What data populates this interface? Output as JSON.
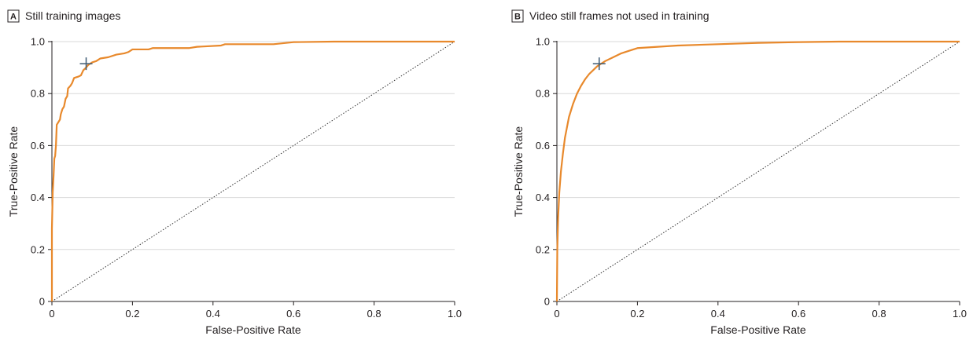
{
  "chart_data": [
    {
      "type": "line",
      "panel_label": "A",
      "title": "Still training images",
      "xlabel": "False-Positive Rate",
      "ylabel": "True-Positive Rate",
      "xlim": [
        0,
        1
      ],
      "ylim": [
        0,
        1
      ],
      "xticks": [
        "0",
        "0.2",
        "0.4",
        "0.6",
        "0.8",
        "1.0"
      ],
      "yticks": [
        "0",
        "0.2",
        "0.4",
        "0.6",
        "0.8",
        "1.0"
      ],
      "grid": "horizontal",
      "colors": {
        "roc": "#e8892c",
        "marker": "#3d5a73",
        "chance": "#333333",
        "grid": "#d9d9d9"
      },
      "series": [
        {
          "points": [
            [
              0,
              0
            ],
            [
              0,
              0.28
            ],
            [
              0.002,
              0.42
            ],
            [
              0.004,
              0.48
            ],
            [
              0.006,
              0.55
            ],
            [
              0.008,
              0.56
            ],
            [
              0.01,
              0.6
            ],
            [
              0.012,
              0.68
            ],
            [
              0.016,
              0.69
            ],
            [
              0.02,
              0.7
            ],
            [
              0.022,
              0.72
            ],
            [
              0.026,
              0.74
            ],
            [
              0.03,
              0.75
            ],
            [
              0.034,
              0.78
            ],
            [
              0.038,
              0.79
            ],
            [
              0.04,
              0.82
            ],
            [
              0.046,
              0.83
            ],
            [
              0.05,
              0.84
            ],
            [
              0.055,
              0.86
            ],
            [
              0.065,
              0.865
            ],
            [
              0.072,
              0.87
            ],
            [
              0.078,
              0.89
            ],
            [
              0.085,
              0.9
            ],
            [
              0.09,
              0.91
            ],
            [
              0.1,
              0.92
            ],
            [
              0.11,
              0.925
            ],
            [
              0.12,
              0.935
            ],
            [
              0.14,
              0.94
            ],
            [
              0.16,
              0.95
            ],
            [
              0.18,
              0.955
            ],
            [
              0.19,
              0.96
            ],
            [
              0.2,
              0.97
            ],
            [
              0.24,
              0.97
            ],
            [
              0.25,
              0.975
            ],
            [
              0.34,
              0.975
            ],
            [
              0.36,
              0.98
            ],
            [
              0.42,
              0.985
            ],
            [
              0.43,
              0.99
            ],
            [
              0.55,
              0.99
            ],
            [
              0.6,
              0.998
            ],
            [
              0.7,
              1.0
            ],
            [
              1.0,
              1.0
            ]
          ]
        }
      ],
      "operating_point": [
        0.085,
        0.915
      ],
      "reference_line": [
        [
          0,
          0
        ],
        [
          1,
          1
        ]
      ]
    },
    {
      "type": "line",
      "panel_label": "B",
      "title": "Video still frames not used in training",
      "xlabel": "False-Positive Rate",
      "ylabel": "True-Positive Rate",
      "xlim": [
        0,
        1
      ],
      "ylim": [
        0,
        1
      ],
      "xticks": [
        "0",
        "0.2",
        "0.4",
        "0.6",
        "0.8",
        "1.0"
      ],
      "yticks": [
        "0",
        "0.2",
        "0.4",
        "0.6",
        "0.8",
        "1.0"
      ],
      "grid": "horizontal",
      "colors": {
        "roc": "#e8892c",
        "marker": "#3d5a73",
        "chance": "#333333",
        "grid": "#d9d9d9"
      },
      "series": [
        {
          "points": [
            [
              0,
              0
            ],
            [
              0.001,
              0.2
            ],
            [
              0.003,
              0.32
            ],
            [
              0.006,
              0.42
            ],
            [
              0.01,
              0.5
            ],
            [
              0.015,
              0.57
            ],
            [
              0.02,
              0.63
            ],
            [
              0.03,
              0.71
            ],
            [
              0.04,
              0.76
            ],
            [
              0.05,
              0.8
            ],
            [
              0.06,
              0.83
            ],
            [
              0.07,
              0.855
            ],
            [
              0.08,
              0.875
            ],
            [
              0.09,
              0.89
            ],
            [
              0.1,
              0.905
            ],
            [
              0.11,
              0.915
            ],
            [
              0.12,
              0.925
            ],
            [
              0.14,
              0.94
            ],
            [
              0.16,
              0.955
            ],
            [
              0.18,
              0.965
            ],
            [
              0.2,
              0.975
            ],
            [
              0.25,
              0.98
            ],
            [
              0.3,
              0.985
            ],
            [
              0.4,
              0.99
            ],
            [
              0.5,
              0.995
            ],
            [
              0.6,
              0.998
            ],
            [
              0.7,
              1.0
            ],
            [
              1.0,
              1.0
            ]
          ]
        }
      ],
      "operating_point": [
        0.105,
        0.915
      ],
      "reference_line": [
        [
          0,
          0
        ],
        [
          1,
          1
        ]
      ]
    }
  ]
}
